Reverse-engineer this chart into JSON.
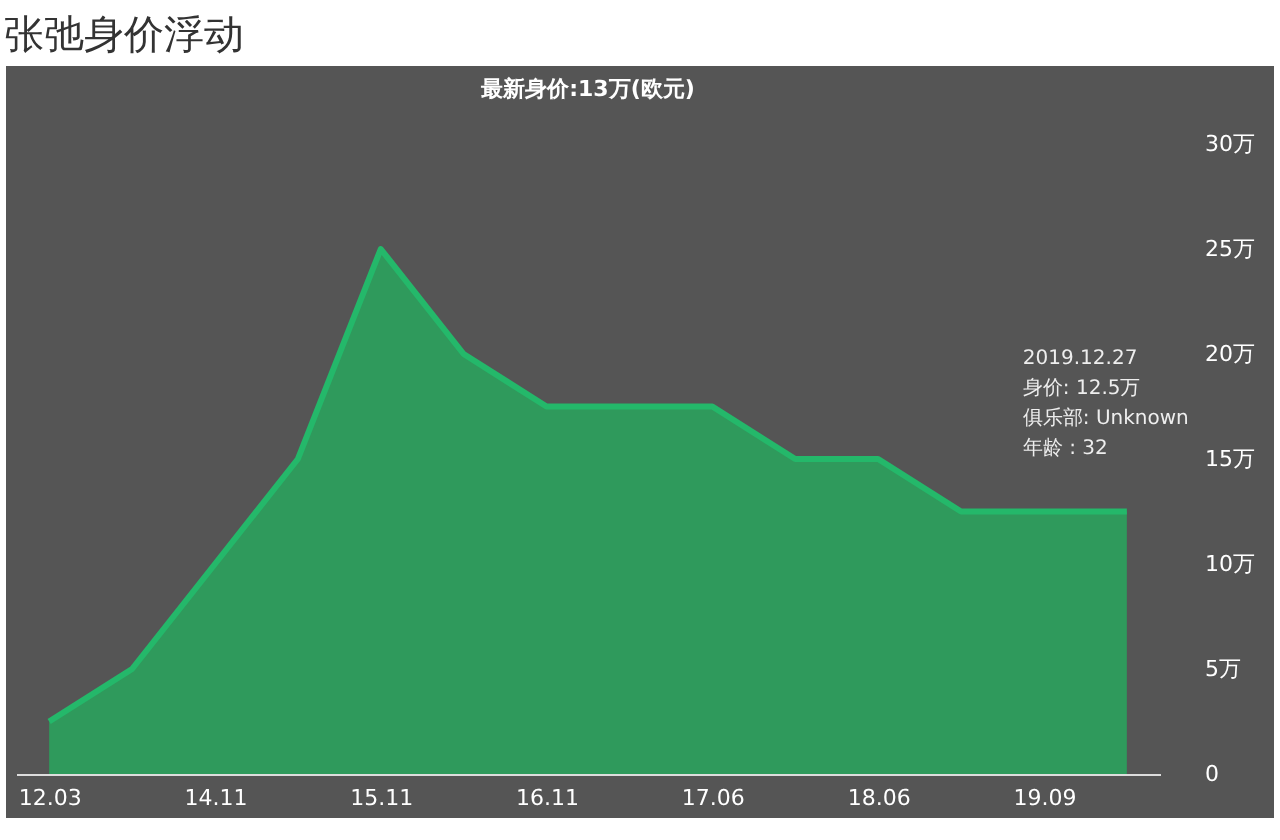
{
  "chart_data": {
    "type": "area",
    "title": "张弛身价浮动",
    "subtitle": "最新身价:13万(欧元)",
    "categories": [
      "12.03",
      null,
      "14.11",
      null,
      "15.11",
      null,
      "16.11",
      null,
      "17.06",
      null,
      "18.06",
      null,
      "19.09",
      null
    ],
    "series": [
      {
        "color": "#2f9a5c",
        "values": [
          2.5,
          5,
          10,
          15,
          25,
          20,
          17.5,
          17.5,
          17.5,
          15,
          15,
          12.5,
          12.5,
          12.5
        ]
      }
    ],
    "ylim": [
      0,
      30
    ],
    "yticks": [
      0,
      {
        "value": 5,
        "label": "5万"
      },
      {
        "value": 10,
        "label": "10万"
      },
      {
        "value": 15,
        "label": "15万"
      },
      {
        "value": 20,
        "label": "20万"
      },
      {
        "value": 25,
        "label": "25万"
      },
      {
        "value": 30,
        "label": "30万"
      }
    ],
    "grid": false,
    "annotations": [
      "2019.12.27",
      "身价: 12.5万",
      "俱乐部: Unknown",
      "年龄 : 32"
    ]
  }
}
